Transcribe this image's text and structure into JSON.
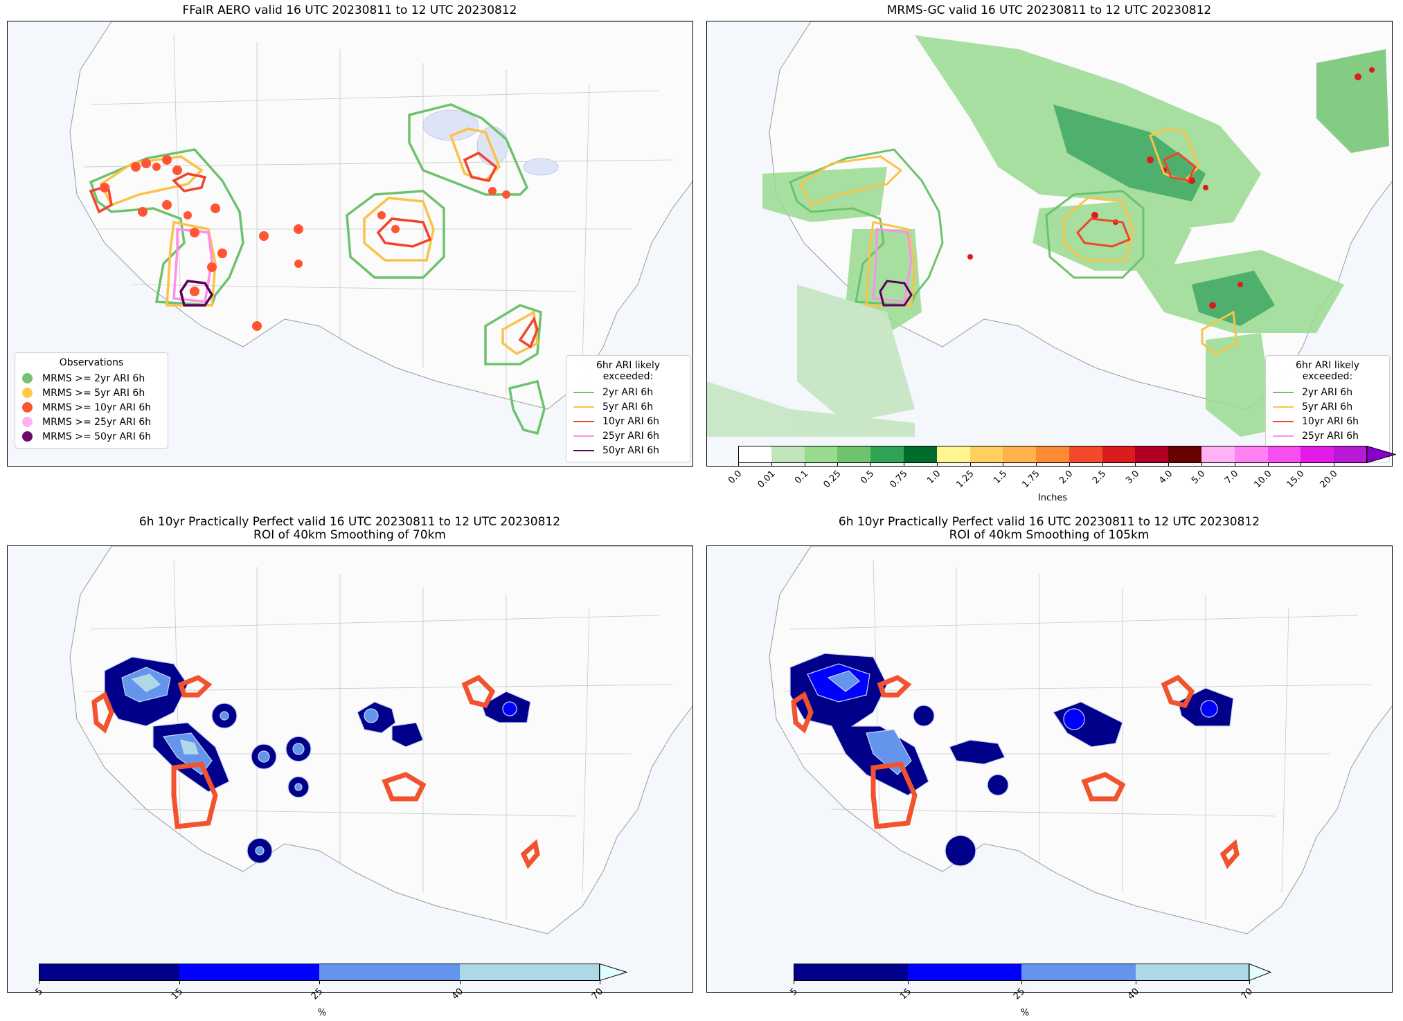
{
  "panels": {
    "p1": {
      "title": "FFaIR AERO valid 16 UTC 20230811 to 12 UTC 20230812"
    },
    "p2": {
      "title": "MRMS-GC valid 16 UTC 20230811 to 12 UTC 20230812"
    },
    "p3": {
      "title": "6h 10yr Practically Perfect valid 16 UTC 20230811 to 12 UTC 20230812",
      "subtitle": "ROI of 40km Smoothing of 70km"
    },
    "p4": {
      "title": "6h 10yr Practically Perfect valid 16 UTC 20230811 to 12 UTC 20230812",
      "subtitle": "ROI of 40km Smoothing of 105km"
    }
  },
  "obs_legend": {
    "title": "Observations",
    "items": [
      {
        "label": "MRMS >= 2yr ARI 6h",
        "color": "#77c277"
      },
      {
        "label": "MRMS >= 5yr ARI 6h",
        "color": "#ffc94a"
      },
      {
        "label": "MRMS >= 10yr ARI 6h",
        "color": "#ff5533"
      },
      {
        "label": "MRMS >= 25yr ARI 6h",
        "color": "#ffb3f2"
      },
      {
        "label": "MRMS >= 50yr ARI 6h",
        "color": "#6a0d6a"
      }
    ]
  },
  "ari_legend": {
    "title": "6hr ARI likely exceeded:",
    "items": [
      {
        "label": "2yr ARI 6h",
        "color": "#6cc36c"
      },
      {
        "label": "5yr ARI 6h",
        "color": "#fbc248"
      },
      {
        "label": "10yr ARI 6h",
        "color": "#f2432b"
      },
      {
        "label": "25yr ARI 6h",
        "color": "#ff8ee8"
      },
      {
        "label": "50yr ARI 6h",
        "color": "#5a005a"
      }
    ]
  },
  "precip_colorbar": {
    "label": "Inches",
    "ticks": [
      "0.0",
      "0.01",
      "0.1",
      "0.25",
      "0.5",
      "0.75",
      "1.0",
      "1.25",
      "1.5",
      "1.75",
      "2.0",
      "2.5",
      "3.0",
      "4.0",
      "5.0",
      "7.0",
      "10.0",
      "15.0",
      "20.0"
    ],
    "colors": [
      "#ffffff",
      "#c2e5bd",
      "#98db8f",
      "#6fc36f",
      "#31a354",
      "#006d2c",
      "#fff68f",
      "#ffd060",
      "#ffb34a",
      "#fe8a35",
      "#f34a2d",
      "#dc1c1c",
      "#b10026",
      "#6a0000",
      "#ffb3f5",
      "#ff80f3",
      "#f84df0",
      "#e21be6",
      "#b81bd6",
      "#8a00c8"
    ]
  },
  "prob_colorbar": {
    "label": "%",
    "ticks": [
      "5",
      "15",
      "25",
      "40",
      "70"
    ],
    "colors": [
      "#00008b",
      "#0000ff",
      "#6495ed",
      "#add8e6",
      "#e0ffff"
    ]
  }
}
